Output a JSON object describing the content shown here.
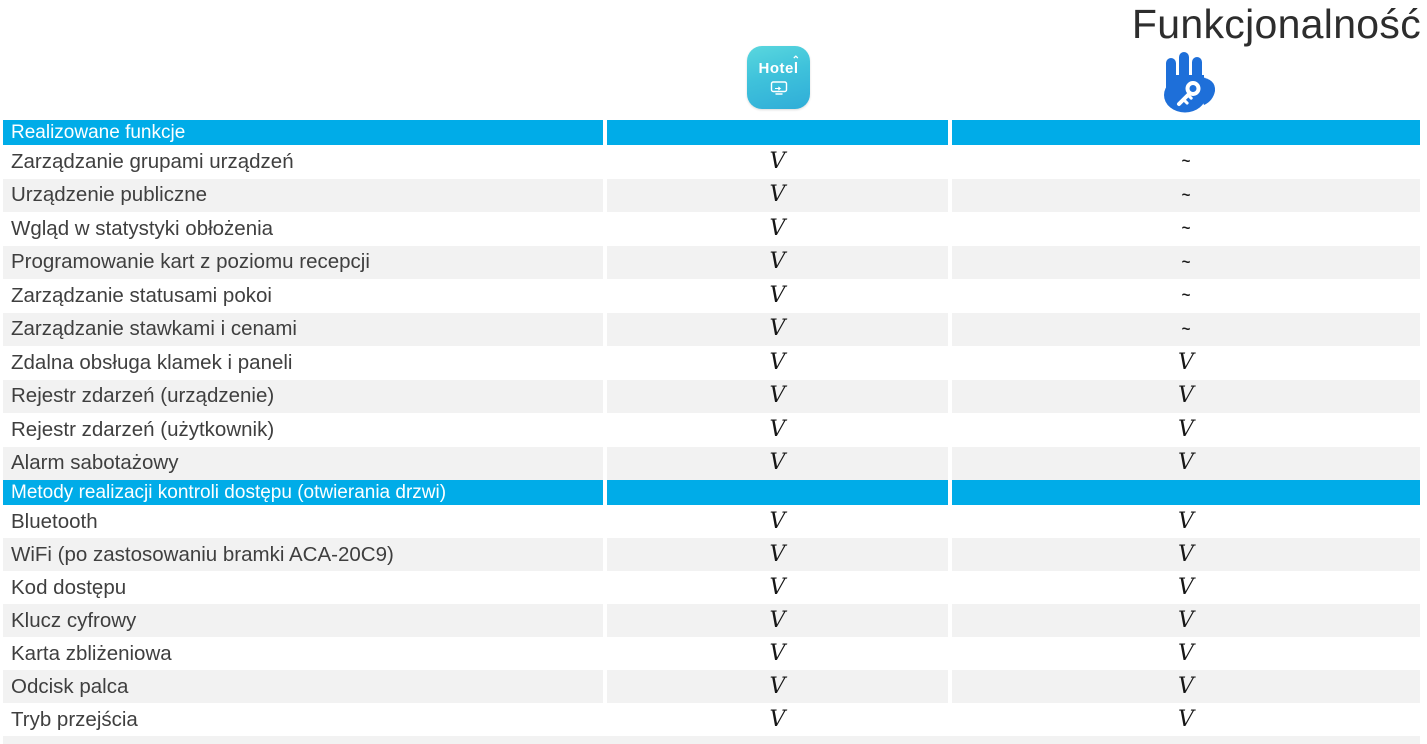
{
  "page": {
    "title": "Funkcjonalność"
  },
  "columns": [
    {
      "icon": "hotel-app-icon",
      "icon_text": "Hotel"
    },
    {
      "icon": "hand-key-icon"
    }
  ],
  "glyphs": {
    "supported": "V",
    "not_supported": "~"
  },
  "colors": {
    "section_header_bg": "#00ace8",
    "row_alt_bg": "#f2f2f2",
    "hand_icon_blue": "#1e6fd9",
    "hotel_icon_top": "#5ad7de",
    "hotel_icon_bottom": "#2fadd8"
  },
  "table": {
    "sections": [
      {
        "header": "Realizowane funkcje",
        "rows": [
          {
            "label": "Zarządzanie grupami urządzeń",
            "col1": "V",
            "col2": "~"
          },
          {
            "label": "Urządzenie publiczne",
            "col1": "V",
            "col2": "~"
          },
          {
            "label": "Wgląd w statystyki obłożenia",
            "col1": "V",
            "col2": "~"
          },
          {
            "label": "Programowanie kart z poziomu recepcji",
            "col1": "V",
            "col2": "~"
          },
          {
            "label": "Zarządzanie statusami pokoi",
            "col1": "V",
            "col2": "~"
          },
          {
            "label": "Zarządzanie stawkami i cenami",
            "col1": "V",
            "col2": "~"
          },
          {
            "label": "Zdalna obsługa klamek i paneli",
            "col1": "V",
            "col2": "V"
          },
          {
            "label": "Rejestr zdarzeń (urządzenie)",
            "col1": "V",
            "col2": "V"
          },
          {
            "label": "Rejestr zdarzeń (użytkownik)",
            "col1": "V",
            "col2": "V"
          },
          {
            "label": "Alarm sabotażowy",
            "col1": "V",
            "col2": "V"
          }
        ]
      },
      {
        "header": "Metody realizacji kontroli dostępu (otwierania drzwi)",
        "rows": [
          {
            "label": "Bluetooth",
            "col1": "V",
            "col2": "V"
          },
          {
            "label": "WiFi (po zastosowaniu bramki ACA-20C9)",
            "col1": "V",
            "col2": "V"
          },
          {
            "label": "Kod dostępu",
            "col1": "V",
            "col2": "V"
          },
          {
            "label": "Klucz cyfrowy",
            "col1": "V",
            "col2": "V"
          },
          {
            "label": "Karta zbliżeniowa",
            "col1": "V",
            "col2": "V"
          },
          {
            "label": "Odcisk palca",
            "col1": "V",
            "col2": "V"
          },
          {
            "label": "Tryb przejścia",
            "col1": "V",
            "col2": "V"
          }
        ]
      }
    ]
  }
}
